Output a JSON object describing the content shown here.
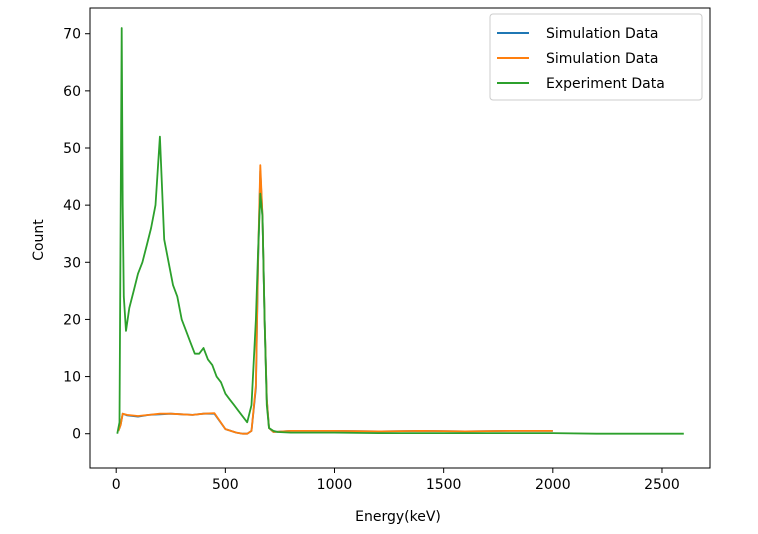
{
  "chart_data": {
    "type": "line",
    "title": "",
    "xlabel": "Energy(keV)",
    "ylabel": "Count",
    "xlim": [
      -120,
      2720
    ],
    "ylim": [
      -6,
      74.5
    ],
    "xticks": [
      0,
      500,
      1000,
      1500,
      2000,
      2500
    ],
    "yticks": [
      0,
      10,
      20,
      30,
      40,
      50,
      60,
      70
    ],
    "xtick_labels": [
      "0",
      "500",
      "1000",
      "1500",
      "2000",
      "2500"
    ],
    "ytick_labels": [
      "0",
      "10",
      "20",
      "30",
      "40",
      "50",
      "60",
      "70"
    ],
    "grid": false,
    "legend_position": "top-right",
    "series": [
      {
        "name": "Simulation Data",
        "color": "#1f77b4",
        "x": [
          10,
          20,
          30,
          50,
          100,
          150,
          200,
          250,
          300,
          350,
          400,
          450,
          500,
          550,
          580,
          600,
          620,
          640,
          650,
          660,
          670,
          680,
          690,
          700,
          720,
          800,
          1000,
          1200,
          1400,
          1600,
          1800,
          2000
        ],
        "y": [
          0.5,
          1.5,
          3.5,
          3.2,
          3.0,
          3.3,
          3.4,
          3.5,
          3.4,
          3.3,
          3.5,
          3.5,
          0.8,
          0.2,
          0.0,
          0.0,
          0.5,
          8.0,
          30,
          46,
          38,
          20,
          6,
          1.0,
          0.3,
          0.5,
          0.5,
          0.4,
          0.5,
          0.4,
          0.5,
          0.5
        ]
      },
      {
        "name": "Simulation Data",
        "color": "#ff7f0e",
        "x": [
          10,
          20,
          30,
          50,
          100,
          150,
          200,
          250,
          300,
          350,
          400,
          450,
          500,
          550,
          580,
          600,
          620,
          640,
          650,
          660,
          670,
          680,
          690,
          700,
          720,
          800,
          1000,
          1200,
          1400,
          1600,
          1800,
          2000
        ],
        "y": [
          0.5,
          1.5,
          3.5,
          3.3,
          3.1,
          3.3,
          3.5,
          3.5,
          3.4,
          3.3,
          3.5,
          3.6,
          0.8,
          0.2,
          0.0,
          0.0,
          0.5,
          8.5,
          31,
          47,
          38,
          20,
          6,
          1.0,
          0.3,
          0.5,
          0.5,
          0.4,
          0.5,
          0.4,
          0.5,
          0.5
        ]
      },
      {
        "name": "Experiment Data",
        "color": "#2ca02c",
        "x": [
          5,
          15,
          25,
          30,
          35,
          45,
          60,
          80,
          100,
          120,
          140,
          160,
          180,
          200,
          220,
          240,
          260,
          280,
          300,
          320,
          340,
          360,
          380,
          400,
          420,
          440,
          460,
          480,
          500,
          520,
          540,
          560,
          580,
          600,
          620,
          640,
          650,
          660,
          670,
          680,
          690,
          700,
          720,
          740,
          800,
          1000,
          1200,
          1400,
          1600,
          1800,
          2000,
          2200,
          2400,
          2600
        ],
        "y": [
          0,
          2,
          71,
          40,
          24,
          18,
          22,
          25,
          28,
          30,
          33,
          36,
          40,
          52,
          34,
          30,
          26,
          24,
          20,
          18,
          16,
          14,
          14,
          15,
          13,
          12,
          10,
          9,
          7,
          6,
          5,
          4,
          3,
          2,
          5,
          20,
          32,
          42,
          38,
          20,
          5,
          1,
          0.5,
          0.3,
          0.2,
          0.2,
          0.1,
          0.1,
          0.1,
          0.1,
          0.1,
          0.0,
          0.0,
          0.0
        ]
      }
    ]
  }
}
